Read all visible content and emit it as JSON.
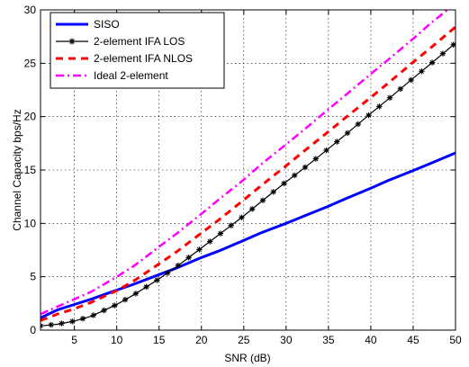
{
  "chart_data": {
    "type": "line",
    "title": "",
    "xlabel": "SNR (dB)",
    "ylabel": "Channel Capacity bps/Hz",
    "xlim": [
      1,
      50
    ],
    "ylim": [
      0,
      30
    ],
    "xticks": [
      5,
      10,
      15,
      20,
      25,
      30,
      35,
      40,
      45,
      50
    ],
    "yticks": [
      0,
      5,
      10,
      15,
      20,
      25,
      30
    ],
    "grid": true,
    "legend_position": "top-left",
    "x": [
      1,
      3,
      5,
      7,
      10,
      12,
      15,
      17,
      20,
      22,
      25,
      27,
      30,
      32,
      35,
      37,
      40,
      42,
      45,
      47,
      50
    ],
    "series": [
      {
        "name": "SISO",
        "color": "#0000ff",
        "style": "solid",
        "marker": "none",
        "values": [
          1.15,
          1.9,
          2.4,
          2.9,
          3.75,
          4.3,
          5.2,
          5.8,
          6.8,
          7.4,
          8.4,
          9.1,
          10.0,
          10.65,
          11.6,
          12.3,
          13.3,
          14.0,
          14.95,
          15.6,
          16.6
        ]
      },
      {
        "name": "2-element IFA LOS",
        "color": "#000000",
        "style": "solid",
        "marker": "asterisk",
        "values": [
          0.4,
          0.55,
          0.85,
          1.3,
          2.4,
          3.3,
          4.8,
          5.9,
          7.7,
          8.9,
          10.7,
          12.0,
          13.9,
          15.1,
          17.0,
          18.3,
          20.3,
          21.6,
          23.6,
          24.9,
          26.9
        ]
      },
      {
        "name": "2-element IFA NLOS",
        "color": "#ff0000",
        "style": "dashed",
        "marker": "none",
        "values": [
          0.9,
          1.5,
          2.0,
          2.6,
          3.7,
          4.6,
          6.2,
          7.3,
          9.1,
          10.3,
          12.2,
          13.5,
          15.4,
          16.7,
          18.6,
          19.9,
          21.8,
          23.1,
          25.1,
          26.4,
          28.4
        ]
      },
      {
        "name": "Ideal 2-element",
        "color": "#ff00ff",
        "style": "dashdot",
        "marker": "none",
        "values": [
          1.5,
          2.2,
          2.9,
          3.6,
          5.0,
          6.0,
          7.8,
          9.0,
          10.9,
          12.2,
          14.1,
          15.5,
          17.4,
          18.7,
          20.7,
          22.0,
          24.0,
          25.3,
          27.3,
          28.7,
          30.6
        ]
      }
    ]
  }
}
